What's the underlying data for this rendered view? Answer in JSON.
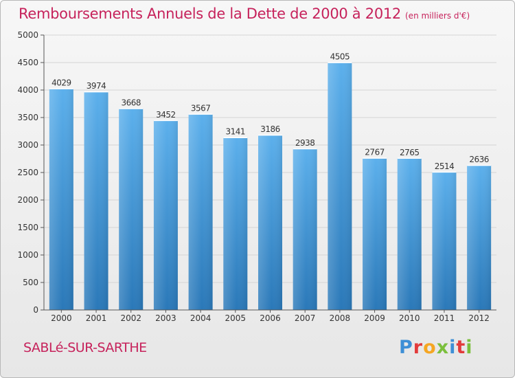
{
  "title": "Remboursements Annuels de la Dette de 2000 à 2012",
  "unit": "(en milliers d'€)",
  "city": "SABLé-SUR-SARTHE",
  "logo": {
    "letters": [
      "P",
      "r",
      "o",
      "x",
      "i",
      "t",
      "i"
    ],
    "colors": [
      "#3d8fd6",
      "#e23b3b",
      "#f5a623",
      "#7bbf3c",
      "#3d8fd6",
      "#e23b3b",
      "#7bbf3c"
    ]
  },
  "colors": {
    "title": "#c6225b",
    "bar_top": "#5cb0ec",
    "bar_bottom": "#2a78b8",
    "grid": "#d4d4d4",
    "axis_text": "#333333"
  },
  "chart_data": {
    "type": "bar",
    "categories": [
      "2000",
      "2001",
      "2002",
      "2003",
      "2004",
      "2005",
      "2006",
      "2007",
      "2008",
      "2009",
      "2010",
      "2011",
      "2012"
    ],
    "values": [
      4029,
      3974,
      3668,
      3452,
      3567,
      3141,
      3186,
      2938,
      4505,
      2767,
      2765,
      2514,
      2636
    ],
    "yticks": [
      0,
      500,
      1000,
      1500,
      2000,
      2500,
      3000,
      3500,
      4000,
      4500,
      5000
    ],
    "ylim": [
      0,
      5000
    ],
    "grid": true,
    "data_labels": true
  }
}
